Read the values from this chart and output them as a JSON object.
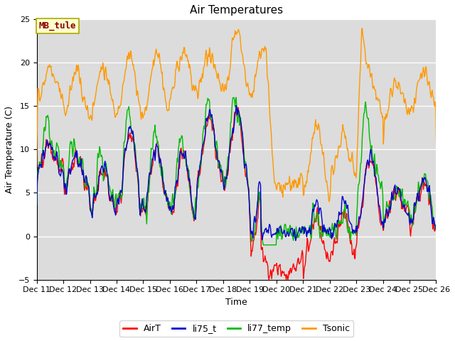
{
  "title": "Air Temperatures",
  "xlabel": "Time",
  "ylabel": "Air Temperature (C)",
  "ylim": [
    -5,
    25
  ],
  "yticks": [
    -5,
    0,
    5,
    10,
    15,
    20,
    25
  ],
  "colors": {
    "AirT": "#ff0000",
    "li75_t": "#0000cc",
    "li77_temp": "#00bb00",
    "Tsonic": "#ff9900"
  },
  "bg_color": "#dcdcdc",
  "annotation_text": "MB_tule",
  "annotation_color": "#880000",
  "annotation_bg": "#ffffcc",
  "xtick_labels": [
    "Dec 11",
    "Dec 12",
    "Dec 13",
    "Dec 14",
    "Dec 15",
    "Dec 16",
    "Dec 17",
    "Dec 18",
    "Dec 19",
    "Dec 20",
    "Dec 21",
    "Dec 22",
    "Dec 23",
    "Dec 24",
    "Dec 25",
    "Dec 26"
  ],
  "legend_items": [
    "AirT",
    "li75_t",
    "li77_temp",
    "Tsonic"
  ]
}
